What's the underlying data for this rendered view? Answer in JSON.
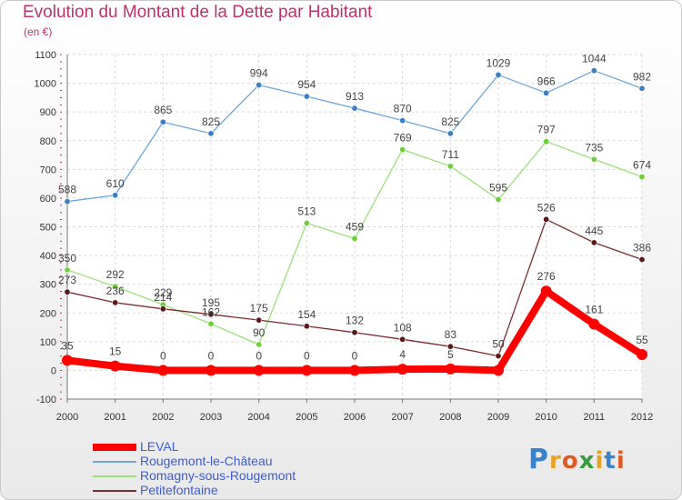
{
  "title": "Evolution du Montant de la Dette par Habitant",
  "subtitle": "(en €)",
  "logo": {
    "text": "Proxiti",
    "letter_colors": [
      "#3a83c9",
      "#e8a21f",
      "#e05a27",
      "#3a9b3c",
      "#e8a21f",
      "#3a83c9",
      "#e05a27"
    ]
  },
  "chart_data": {
    "type": "line",
    "x": [
      "2000",
      "2001",
      "2002",
      "2003",
      "2004",
      "2005",
      "2006",
      "2007",
      "2008",
      "2009",
      "2010",
      "2011",
      "2012"
    ],
    "ylim": [
      -100,
      1100
    ],
    "yticks": [
      -100,
      0,
      100,
      200,
      300,
      400,
      500,
      600,
      700,
      800,
      900,
      1000,
      1100
    ],
    "grid": true,
    "legend_position": "bottom-left",
    "series": [
      {
        "name": "LEVAL",
        "color": "#ff0000",
        "emphasis": true,
        "values": [
          35,
          15,
          0,
          0,
          0,
          0,
          0,
          4,
          5,
          0,
          276,
          161,
          55
        ],
        "labels": [
          "35",
          "15",
          "0",
          "0",
          "0",
          "0",
          "0",
          "4",
          "5",
          "",
          "276",
          "161",
          "55"
        ]
      },
      {
        "name": "Rougemont-le-Château",
        "color": "#6ea6d8",
        "point_color": "#3b7fc4",
        "values": [
          588,
          610,
          865,
          825,
          994,
          954,
          913,
          870,
          825,
          1029,
          966,
          1044,
          982
        ],
        "labels": [
          "588",
          "610",
          "865",
          "825",
          "994",
          "954",
          "913",
          "870",
          "825",
          "1029",
          "966",
          "1044",
          "982"
        ]
      },
      {
        "name": "Romagny-sous-Rougemont",
        "color": "#9be07a",
        "point_color": "#6fcf3a",
        "values": [
          350,
          292,
          229,
          162,
          90,
          513,
          459,
          769,
          711,
          595,
          797,
          735,
          674
        ],
        "labels": [
          "350",
          "292",
          "229",
          "162",
          "90",
          "513",
          "459",
          "769",
          "711",
          "595",
          "797",
          "735",
          "674"
        ]
      },
      {
        "name": "Petitefontaine",
        "color": "#7a2e2e",
        "point_color": "#5a1a1a",
        "values": [
          273,
          236,
          214,
          195,
          175,
          154,
          132,
          108,
          83,
          50,
          526,
          445,
          386
        ],
        "labels": [
          "273",
          "236",
          "214",
          "195",
          "175",
          "154",
          "132",
          "108",
          "83",
          "50",
          "526",
          "445",
          "386"
        ]
      }
    ]
  }
}
